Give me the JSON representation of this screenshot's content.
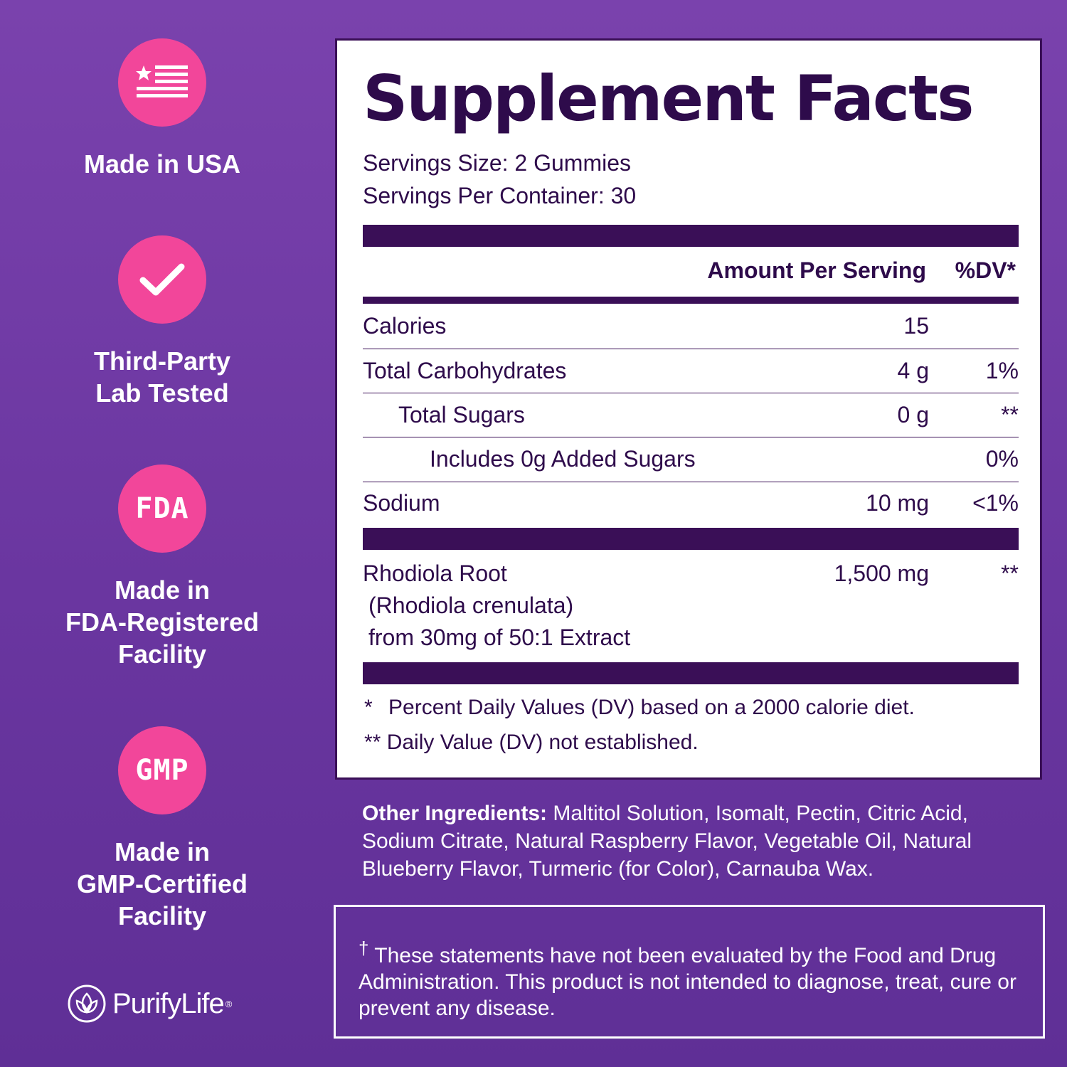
{
  "badges": [
    {
      "icon": "us-flag-icon",
      "label": "Made in USA"
    },
    {
      "icon": "checkmark-icon",
      "label": "Third-Party\nLab Tested"
    },
    {
      "icon_text": "FDA",
      "label": "Made in\nFDA-Registered\nFacility"
    },
    {
      "icon_text": "GMP",
      "label": "Made in\nGMP-Certified\nFacility"
    }
  ],
  "brand": {
    "name": "PurifyLife",
    "reg": "®"
  },
  "facts": {
    "title": "Supplement Facts",
    "serving_size": "Servings Size: 2 Gummies",
    "servings_per_container": "Servings Per Container: 30",
    "header_amount": "Amount Per Serving",
    "header_dv": "%DV*",
    "rows": [
      {
        "name": "Calories",
        "amount": "15",
        "dv": ""
      },
      {
        "name": "Total Carbohydrates",
        "amount": "4 g",
        "dv": "1%"
      },
      {
        "name": "Total Sugars",
        "amount": "0 g",
        "dv": "**"
      },
      {
        "name": "Includes 0g Added Sugars",
        "amount": "",
        "dv": "0%"
      },
      {
        "name": "Sodium",
        "amount": "10 mg",
        "dv": "<1%"
      }
    ],
    "ingredient": {
      "name": "Rhodiola Root",
      "line2": "(Rhodiola crenulata)",
      "line3": "from 30mg of 50:1 Extract",
      "amount": "1,500 mg",
      "dv": "**"
    },
    "footnote1_mark": "*",
    "footnote1": "Percent Daily Values (DV) based on a 2000 calorie diet.",
    "footnote2_mark": "**",
    "footnote2": "Daily Value (DV) not established."
  },
  "other_ingredients": {
    "label": "Other Ingredients:",
    "text": " Maltitol Solution, Isomalt, Pectin, Citric Acid, Sodium Citrate, Natural Raspberry Flavor, Vegetable Oil, Natural Blueberry Flavor, Turmeric (for Color), Carnauba Wax."
  },
  "disclaimer": {
    "mark": "†",
    "text": " These statements have not been evaluated by the Food and Drug Administration. This product is not intended to diagnose, treat, cure or prevent any disease."
  },
  "colors": {
    "accent": "#f2469a",
    "panel_dark": "#3a0f57",
    "background": "#6f39a4"
  }
}
